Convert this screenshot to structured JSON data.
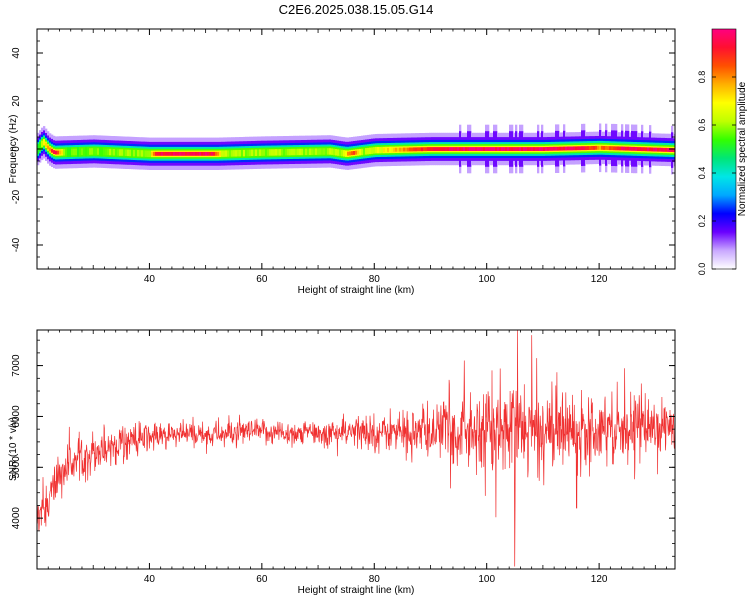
{
  "title": "C2E6.2025.038.15.05.G14",
  "colors": {
    "snr_line": "#f03030",
    "frame": "#000000",
    "background": "#ffffff"
  },
  "colorbar": {
    "label": "Normalized spectral amplitude",
    "ticks": [
      "0.0",
      "0.2",
      "0.4",
      "0.6",
      "0.8"
    ],
    "range": [
      0.0,
      1.0
    ],
    "colormap": [
      "#ffffff",
      "#c9a8ff",
      "#6a00ff",
      "#0000ff",
      "#00a8ff",
      "#00e6e6",
      "#00e676",
      "#33ff00",
      "#bfff00",
      "#ffff00",
      "#ffb000",
      "#ff5000",
      "#ff1030",
      "#ff0080"
    ]
  },
  "chart_data": [
    {
      "type": "heatmap",
      "title": "C2E6.2025.038.15.05.G14",
      "xlabel": "Height of straight line (km)",
      "ylabel": "Frequency (Hz)",
      "xlim": [
        20,
        133.5
      ],
      "ylim": [
        -50,
        50
      ],
      "xticks": [
        "40",
        "60",
        "80",
        "100",
        "120"
      ],
      "yticks": [
        "-40",
        "-20",
        "0",
        "20",
        "40"
      ],
      "grid": false,
      "band_center_freq": [
        {
          "x": 20,
          "y": 0
        },
        {
          "x": 21,
          "y": 3
        },
        {
          "x": 22,
          "y": 0
        },
        {
          "x": 23,
          "y": -1.5
        },
        {
          "x": 30,
          "y": -1
        },
        {
          "x": 40,
          "y": -2
        },
        {
          "x": 52,
          "y": -2
        },
        {
          "x": 60,
          "y": -1.5
        },
        {
          "x": 72,
          "y": -1
        },
        {
          "x": 75,
          "y": -2
        },
        {
          "x": 80,
          "y": -0.5
        },
        {
          "x": 90,
          "y": 0
        },
        {
          "x": 100,
          "y": 0
        },
        {
          "x": 110,
          "y": 0
        },
        {
          "x": 120,
          "y": 0.5
        },
        {
          "x": 133.5,
          "y": -0.5
        }
      ],
      "peak_amplitude": [
        {
          "x": 20,
          "v": 0.5
        },
        {
          "x": 23,
          "v": 0.95
        },
        {
          "x": 25,
          "v": 0.55
        },
        {
          "x": 40,
          "v": 0.6
        },
        {
          "x": 41,
          "v": 0.95
        },
        {
          "x": 51,
          "v": 0.95
        },
        {
          "x": 53,
          "v": 0.6
        },
        {
          "x": 74,
          "v": 0.6
        },
        {
          "x": 76,
          "v": 0.9
        },
        {
          "x": 78,
          "v": 0.6
        },
        {
          "x": 84,
          "v": 0.75
        },
        {
          "x": 88,
          "v": 0.9
        },
        {
          "x": 96,
          "v": 0.97
        },
        {
          "x": 106,
          "v": 0.97
        },
        {
          "x": 117,
          "v": 0.95
        },
        {
          "x": 120,
          "v": 0.8
        },
        {
          "x": 124,
          "v": 0.95
        },
        {
          "x": 133.5,
          "v": 0.95
        }
      ]
    },
    {
      "type": "line",
      "xlabel": "Height of straight line (km)",
      "ylabel": "SNR (10 * v/v)",
      "xlim": [
        20,
        133.5
      ],
      "ylim": [
        3000,
        7700
      ],
      "xticks": [
        "40",
        "60",
        "80",
        "100",
        "120"
      ],
      "yticks": [
        "4000",
        "5000",
        "6000",
        "7000"
      ],
      "grid": false,
      "series": [
        {
          "envelope": [
            {
              "x": 20,
              "mean": 4100,
              "spread": 250
            },
            {
              "x": 22,
              "mean": 4300,
              "spread": 300
            },
            {
              "x": 24,
              "mean": 4900,
              "spread": 300
            },
            {
              "x": 28,
              "mean": 5250,
              "spread": 280
            },
            {
              "x": 32,
              "mean": 5400,
              "spread": 260
            },
            {
              "x": 40,
              "mean": 5600,
              "spread": 200
            },
            {
              "x": 50,
              "mean": 5650,
              "spread": 160
            },
            {
              "x": 60,
              "mean": 5700,
              "spread": 150
            },
            {
              "x": 70,
              "mean": 5650,
              "spread": 170
            },
            {
              "x": 80,
              "mean": 5700,
              "spread": 220
            },
            {
              "x": 90,
              "mean": 5700,
              "spread": 330
            },
            {
              "x": 95,
              "mean": 5750,
              "spread": 500
            },
            {
              "x": 100,
              "mean": 5750,
              "spread": 550
            },
            {
              "x": 110,
              "mean": 5750,
              "spread": 500
            },
            {
              "x": 120,
              "mean": 5800,
              "spread": 420
            },
            {
              "x": 133.5,
              "mean": 5800,
              "spread": 350
            }
          ],
          "notable_points": [
            {
              "x": 105,
              "y": 3050
            },
            {
              "x": 105.5,
              "y": 7700
            },
            {
              "x": 108,
              "y": 7600
            },
            {
              "x": 116,
              "y": 4200
            },
            {
              "x": 94,
              "y": 4300
            },
            {
              "x": 96,
              "y": 7100
            }
          ]
        }
      ]
    }
  ]
}
